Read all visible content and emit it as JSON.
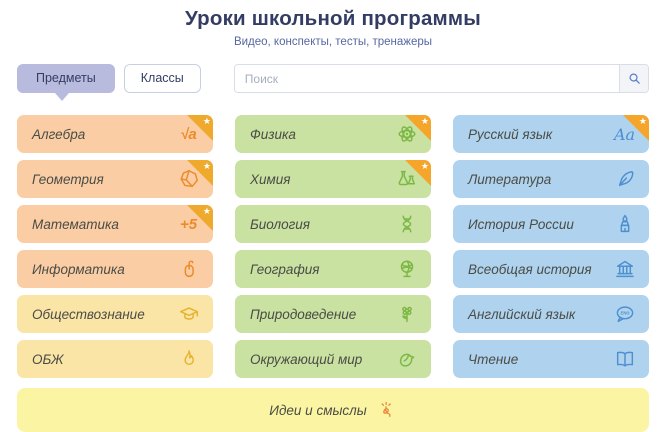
{
  "header": {
    "title": "Уроки школьной программы",
    "subtitle": "Видео, конспекты, тесты, тренажеры"
  },
  "tabs": [
    {
      "label": "Предметы",
      "active": true
    },
    {
      "label": "Классы",
      "active": false
    }
  ],
  "search": {
    "placeholder": "Поиск",
    "icon": "search-icon"
  },
  "columns": [
    {
      "theme": "orange-yellow",
      "cards": [
        {
          "label": "Алгебра",
          "variant": "orange",
          "icon": "sqrt-a-icon",
          "icon_text": "√a",
          "starred": true
        },
        {
          "label": "Геометрия",
          "variant": "orange",
          "icon": "polyhedron-icon",
          "starred": true
        },
        {
          "label": "Математика",
          "variant": "orange",
          "icon": "plus-five-icon",
          "icon_text": "+5",
          "starred": true
        },
        {
          "label": "Информатика",
          "variant": "orange",
          "icon": "computer-mouse-icon",
          "starred": false
        },
        {
          "label": "Обществознание",
          "variant": "yellow",
          "icon": "graduation-cap-icon",
          "starred": false
        },
        {
          "label": "ОБЖ",
          "variant": "yellow",
          "icon": "flame-icon",
          "starred": false
        }
      ]
    },
    {
      "theme": "green",
      "cards": [
        {
          "label": "Физика",
          "variant": "green",
          "icon": "atom-icon",
          "starred": true
        },
        {
          "label": "Химия",
          "variant": "green",
          "icon": "flasks-icon",
          "starred": true
        },
        {
          "label": "Биология",
          "variant": "green",
          "icon": "dna-icon",
          "starred": false
        },
        {
          "label": "География",
          "variant": "green",
          "icon": "globe-icon",
          "starred": false
        },
        {
          "label": "Природоведение",
          "variant": "green",
          "icon": "flower-icon",
          "starred": false
        },
        {
          "label": "Окружающий мир",
          "variant": "green",
          "icon": "bird-icon",
          "starred": false
        }
      ]
    },
    {
      "theme": "blue",
      "cards": [
        {
          "label": "Русский язык",
          "variant": "blue",
          "icon": "aa-letters-icon",
          "icon_text": "Aa",
          "starred": true
        },
        {
          "label": "Литература",
          "variant": "blue",
          "icon": "quill-icon",
          "starred": false
        },
        {
          "label": "История России",
          "variant": "blue",
          "icon": "kremlin-tower-icon",
          "starred": false
        },
        {
          "label": "Всеобщая история",
          "variant": "blue",
          "icon": "classical-building-icon",
          "starred": false
        },
        {
          "label": "Английский язык",
          "variant": "blue",
          "icon": "eng-bubble-icon",
          "starred": false
        },
        {
          "label": "Чтение",
          "variant": "blue",
          "icon": "open-book-icon",
          "starred": false
        }
      ]
    }
  ],
  "footer": {
    "label": "Идеи и смыслы",
    "icon": "snap-fingers-icon"
  },
  "colors": {
    "title_text": "#333d63",
    "subtitle_text": "#5667a2",
    "active_tab_bg": "#b8bbde",
    "orange_card_bg": "#facda4",
    "yellow_card_bg": "#fae5a6",
    "green_card_bg": "#c9e1a1",
    "blue_card_bg": "#afd3ee",
    "footer_bar_bg": "#fbf5a3",
    "star_badge": "#f6a52b",
    "orange_icon": "#ed8b2b",
    "yellow_icon": "#e6b32f",
    "green_icon": "#7db844",
    "blue_icon": "#4e8fd0"
  }
}
